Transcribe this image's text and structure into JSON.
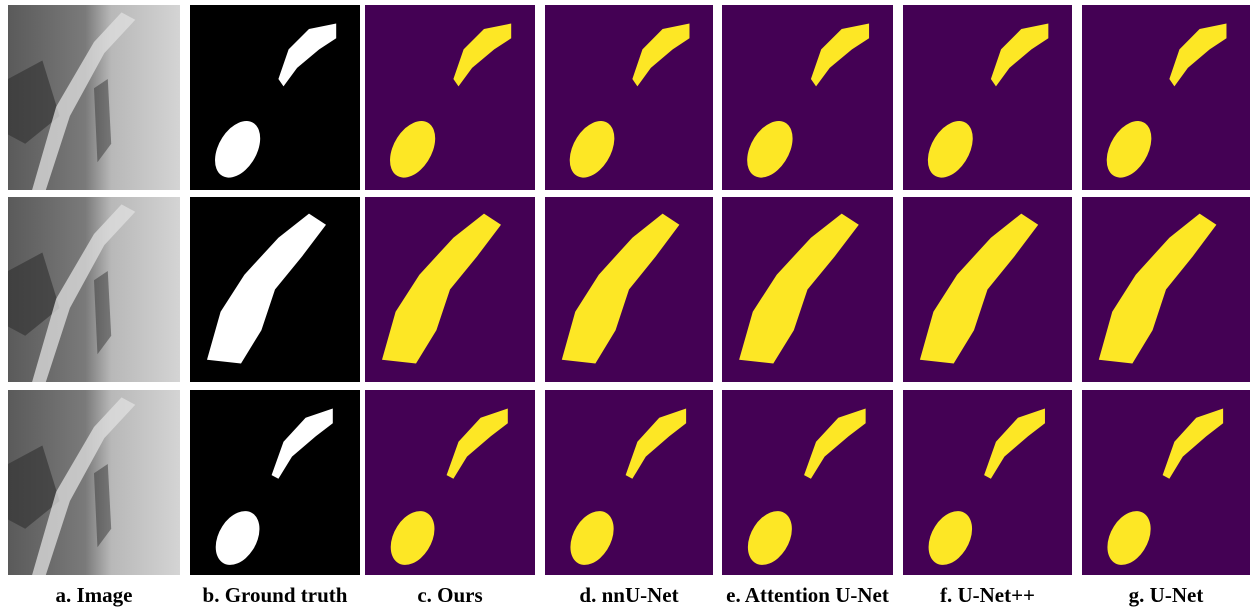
{
  "captions": [
    "a. Image",
    "b. Ground truth",
    "c. Ours",
    "d. nnU-Net",
    "e. Attention U-Net",
    "f. U-Net++",
    "g. U-Net"
  ]
}
